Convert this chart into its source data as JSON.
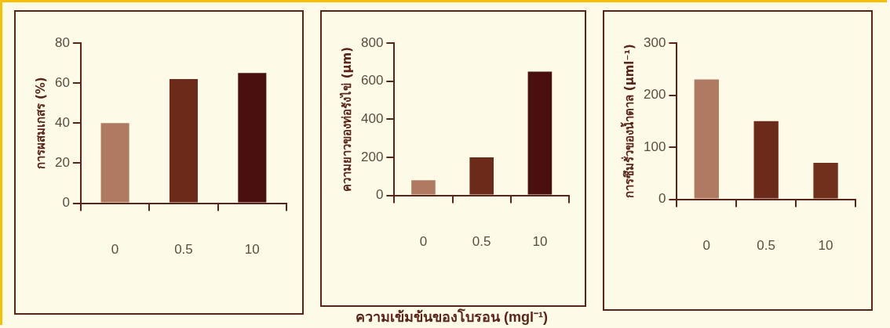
{
  "chart_data": [
    {
      "type": "bar",
      "ylabel": "การผสมเกสร (%)",
      "categories": [
        "0",
        "0.5",
        "10"
      ],
      "values": [
        40,
        62,
        65
      ],
      "colors": [
        "#b07a62",
        "#6b2a1a",
        "#4a0f0f"
      ],
      "ylim": [
        0,
        80
      ],
      "yticks": [
        0,
        20,
        40,
        60,
        80
      ],
      "grid": false
    },
    {
      "type": "bar",
      "ylabel": "ความยาวของท่อรังไข่ (µm)",
      "xlabel": "ความเข้มข้นของโบรอน (mgl⁻¹)",
      "categories": [
        "0",
        "0.5",
        "10"
      ],
      "values": [
        80,
        200,
        650
      ],
      "colors": [
        "#b07a62",
        "#6b2a1a",
        "#4a0f0f"
      ],
      "ylim": [
        0,
        800
      ],
      "yticks": [
        0,
        200,
        400,
        600,
        800
      ],
      "grid": false
    },
    {
      "type": "bar",
      "ylabel": "การซึมรั่วของน้ำตาล (µml⁻¹)",
      "categories": [
        "0",
        "0.5",
        "10"
      ],
      "values": [
        230,
        150,
        70
      ],
      "colors": [
        "#b07a62",
        "#6b2a1a",
        "#70301c"
      ],
      "ylim": [
        0,
        300
      ],
      "yticks": [
        0,
        100,
        200,
        300
      ],
      "grid": false
    }
  ]
}
